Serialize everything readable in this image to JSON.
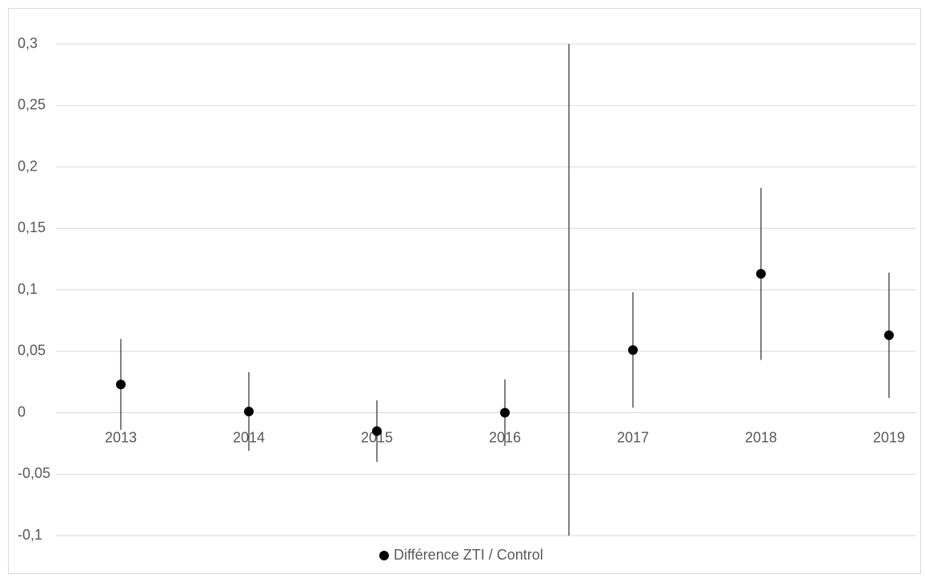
{
  "chart_data": {
    "type": "errorbar",
    "categories": [
      "2013",
      "2014",
      "2015",
      "2016",
      "2017",
      "2018",
      "2019"
    ],
    "series": [
      {
        "name": "Différence ZTI / Control",
        "color": "#000000",
        "values": [
          0.023,
          0.001,
          -0.015,
          0.0,
          0.051,
          0.113,
          0.063
        ],
        "errors": [
          0.037,
          0.032,
          0.025,
          0.027,
          0.047,
          0.07,
          0.051
        ]
      }
    ],
    "ylim": [
      -0.1,
      0.3
    ],
    "yticks": [
      {
        "value": -0.1,
        "label": "-0,1"
      },
      {
        "value": -0.05,
        "label": "-0,05"
      },
      0,
      {
        "value": 0.05,
        "label": "0,05"
      },
      {
        "value": 0.1,
        "label": "0,1"
      },
      {
        "value": 0.15,
        "label": "0,15"
      },
      {
        "value": 0.2,
        "label": "0,2"
      },
      {
        "value": 0.25,
        "label": "0,25"
      },
      {
        "value": 0.3,
        "label": "0,3"
      }
    ],
    "grid": true,
    "legend": "bottom"
  }
}
